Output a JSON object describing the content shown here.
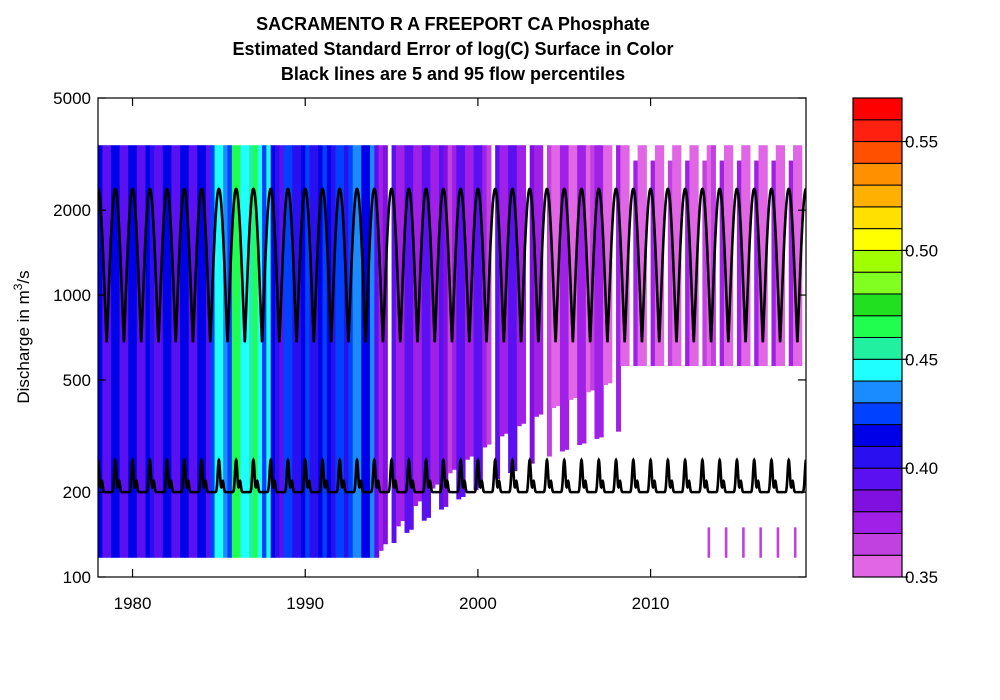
{
  "chart_data": {
    "type": "heatmap",
    "title_lines": [
      "SACRAMENTO R A FREEPORT CA    Phosphate",
      "Estimated Standard Error of log(C) Surface in Color",
      "Black lines are 5 and 95 flow percentiles"
    ],
    "ylabel": {
      "prefix": "Discharge in m",
      "sup": "3",
      "suffix": "/s"
    },
    "xlabel": "",
    "x_range": [
      1978,
      2019
    ],
    "x_ticks": [
      1980,
      1990,
      2000,
      2010
    ],
    "y_scale": "log",
    "y_range": [
      100,
      5000
    ],
    "y_ticks": [
      100,
      200,
      500,
      1000,
      2000,
      5000
    ],
    "surface_discharge_range": [
      117,
      3400
    ],
    "flow_percentiles": {
      "p95": {
        "min": 680,
        "max": 2380,
        "cycles_per_year": 1
      },
      "p5": {
        "min": 200,
        "max": 260,
        "cycles_per_year": 1
      }
    },
    "colorbar": {
      "range": [
        0.35,
        0.57
      ],
      "ticks": [
        0.35,
        0.4,
        0.45,
        0.5,
        0.55
      ],
      "tick_labels": [
        "0.35",
        "0.40",
        "0.45",
        "0.50",
        "0.55"
      ],
      "colors": [
        "#e066e6",
        "#c040e0",
        "#a020e8",
        "#8010e0",
        "#5a10f0",
        "#2a10f0",
        "#0000e8",
        "#0040ff",
        "#1a8cff",
        "#20ffff",
        "#20f0a0",
        "#20ff50",
        "#20e020",
        "#80ff20",
        "#a0ff00",
        "#ffff00",
        "#ffe000",
        "#ffb000",
        "#ff9000",
        "#ff5000",
        "#ff2010",
        "#ff0000"
      ]
    }
  }
}
